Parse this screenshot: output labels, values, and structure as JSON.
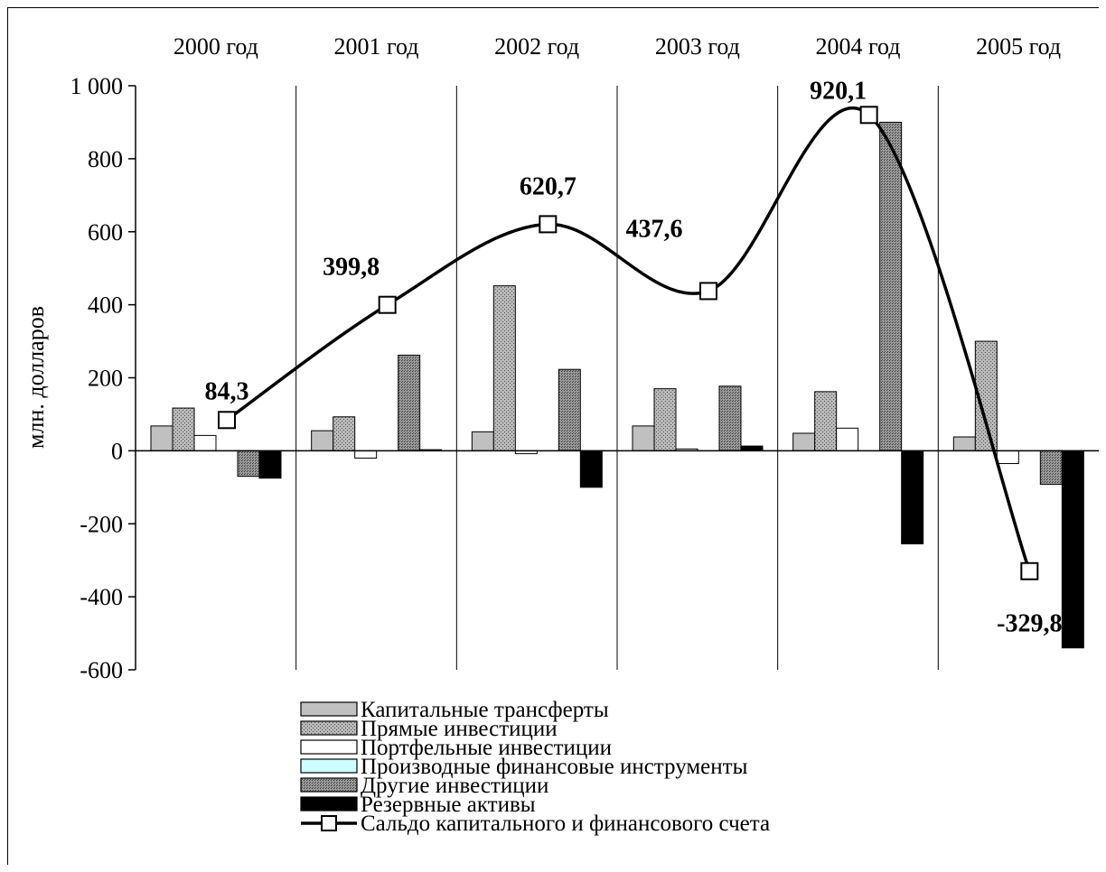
{
  "chart_data": {
    "type": "bar",
    "title": "",
    "xlabel": "",
    "ylabel": "млн. долларов",
    "ylim": [
      -600,
      1000
    ],
    "yticks": [
      1000,
      800,
      600,
      400,
      200,
      0,
      -200,
      -400,
      -600
    ],
    "ytick_labels": [
      "1 000",
      "800",
      "600",
      "400",
      "200",
      "0",
      "-200",
      "-400",
      "-600"
    ],
    "categories": [
      "2000 год",
      "2001 год",
      "2002 год",
      "2003 год",
      "2004 год",
      "2005 год"
    ],
    "legend_position": "bottom",
    "series": [
      {
        "name": "Капитальные трансферты",
        "type": "bar",
        "color": "#c0c0c0",
        "pattern": "none",
        "values": [
          68,
          55,
          52,
          68,
          48,
          38
        ]
      },
      {
        "name": "Прямые инвестиции",
        "type": "bar",
        "color": "#a6a6a6",
        "pattern": "dots",
        "values": [
          117,
          93,
          452,
          170,
          162,
          300
        ]
      },
      {
        "name": "Портфельные инвестиции",
        "type": "bar",
        "color": "#ffffff",
        "pattern": "none",
        "values": [
          42,
          -20,
          -8,
          5,
          62,
          -35
        ]
      },
      {
        "name": "Производные финансовые инструменты",
        "type": "bar",
        "color": "#ccffff",
        "pattern": "none",
        "values": [
          0,
          0,
          0,
          0,
          0,
          0
        ]
      },
      {
        "name": "Другие инвестиции",
        "type": "bar",
        "color": "#9a9a9a",
        "pattern": "dense",
        "values": [
          -70,
          262,
          223,
          177,
          900,
          -92
        ]
      },
      {
        "name": "Резервные активы",
        "type": "bar",
        "color": "#000000",
        "pattern": "none",
        "values": [
          -75,
          3,
          -100,
          13,
          -255,
          -540
        ]
      },
      {
        "name": "Сальдо капитального и финансового счета",
        "type": "line",
        "color": "#000000",
        "marker": "square",
        "values": [
          84.3,
          399.8,
          620.7,
          437.6,
          920.1,
          -329.8
        ],
        "labels": [
          "84,3",
          "399,8",
          "620,7",
          "437,6",
          "920,1",
          "-329,8"
        ]
      }
    ]
  }
}
